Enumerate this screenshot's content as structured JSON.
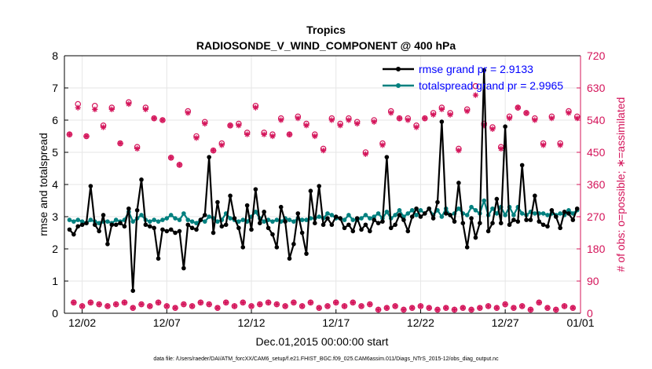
{
  "chart_data": {
    "type": "line",
    "title": "Tropics",
    "subtitle": "RADIOSONDE_V_WIND_COMPONENT @ 400 hPa",
    "xlabel": "Dec.01,2015 00:00:00 start",
    "ylabel_left": "rmse and totalspread",
    "ylabel_right": "# of obs: o=possible; ∗=assimilated",
    "footnote": "data file: /Users/raeder/DAI/ATM_forcXX/CAM6_setup/f.e21.FHIST_BGC.f09_025.CAM6assim.011/Diags_NTrS_2015-12/obs_diag_output.nc",
    "xlim": [
      0.7,
      31.2
    ],
    "ylim_left": [
      0,
      8
    ],
    "ylim_right": [
      0,
      720
    ],
    "x_ticks": [
      1.75,
      6.75,
      11.75,
      16.75,
      21.75,
      26.75,
      31.75
    ],
    "x_tick_labels": [
      "12/02",
      "12/07",
      "12/12",
      "12/17",
      "12/22",
      "12/27",
      "01/01"
    ],
    "y_ticks_left": [
      0,
      1,
      2,
      3,
      4,
      5,
      6,
      7,
      8
    ],
    "y_tick_labels_left": [
      "0",
      "1",
      "2",
      "3",
      "4",
      "5",
      "6",
      "7",
      "8"
    ],
    "y_ticks_right": [
      0,
      90,
      180,
      270,
      360,
      450,
      540,
      630,
      720
    ],
    "y_tick_labels_right": [
      "0",
      "90",
      "180",
      "270",
      "360",
      "450",
      "540",
      "630",
      "720"
    ],
    "legend_position": "top-right",
    "colors": {
      "rmse": "#000000",
      "spread": "#00807f",
      "obs": "#d4145a",
      "legend_text": "#0000ff",
      "right_axis": "#d4145a"
    },
    "series": [
      {
        "name": "rmse grand pr = 2.9133",
        "x": [
          1.0,
          1.25,
          1.5,
          1.75,
          2.0,
          2.25,
          2.5,
          2.75,
          3.0,
          3.25,
          3.5,
          3.75,
          4.0,
          4.25,
          4.5,
          4.75,
          5.0,
          5.25,
          5.5,
          5.75,
          6.0,
          6.25,
          6.5,
          6.75,
          7.0,
          7.25,
          7.5,
          7.75,
          8.0,
          8.25,
          8.5,
          8.75,
          9.0,
          9.25,
          9.5,
          9.75,
          10.0,
          10.25,
          10.5,
          10.75,
          11.0,
          11.25,
          11.5,
          11.75,
          12.0,
          12.25,
          12.5,
          12.75,
          13.0,
          13.25,
          13.5,
          13.75,
          14.0,
          14.25,
          14.5,
          14.75,
          15.0,
          15.25,
          15.5,
          15.75,
          16.0,
          16.25,
          16.5,
          16.75,
          17.0,
          17.25,
          17.5,
          17.75,
          18.0,
          18.25,
          18.5,
          18.75,
          19.0,
          19.25,
          19.5,
          19.75,
          20.0,
          20.25,
          20.5,
          20.75,
          21.0,
          21.25,
          21.5,
          21.75,
          22.0,
          22.25,
          22.5,
          22.75,
          23.0,
          23.25,
          23.5,
          23.75,
          24.0,
          24.25,
          24.5,
          24.75,
          25.0,
          25.25,
          25.5,
          25.75,
          26.0,
          26.25,
          26.5,
          26.75,
          27.0,
          27.25,
          27.5,
          27.75,
          28.0,
          28.25,
          28.5,
          28.75,
          29.0,
          29.25,
          29.5,
          29.75,
          30.0,
          30.25,
          30.5,
          30.75,
          31.0
        ],
        "values": [
          2.6,
          2.45,
          2.7,
          2.75,
          2.8,
          3.95,
          2.75,
          2.55,
          3.05,
          2.15,
          2.75,
          2.75,
          2.8,
          2.7,
          3.25,
          0.7,
          3.2,
          4.15,
          2.75,
          2.7,
          2.65,
          1.7,
          2.6,
          2.55,
          2.6,
          2.5,
          2.55,
          1.4,
          2.75,
          2.65,
          2.6,
          2.9,
          3.05,
          4.85,
          2.5,
          3.45,
          2.7,
          2.75,
          3.65,
          2.95,
          2.65,
          2.05,
          3.35,
          2.6,
          3.85,
          2.8,
          3.15,
          2.65,
          2.45,
          2.05,
          3.3,
          2.85,
          1.7,
          2.15,
          3.1,
          2.5,
          1.85,
          3.8,
          2.8,
          3.95,
          2.75,
          2.95,
          2.75,
          3.0,
          2.95,
          2.65,
          2.75,
          2.55,
          2.95,
          2.6,
          2.75,
          2.55,
          2.9,
          2.8,
          2.85,
          4.85,
          2.65,
          2.75,
          3.05,
          2.9,
          2.55,
          3.0,
          3.25,
          3.0,
          3.1,
          3.25,
          2.95,
          3.45,
          5.95,
          3.1,
          3.05,
          2.85,
          4.05,
          2.8,
          2.05,
          2.95,
          2.35,
          2.8,
          7.55,
          2.55,
          2.8,
          3.55,
          2.8,
          5.8,
          2.75,
          2.9,
          2.85,
          4.6,
          2.9,
          2.9,
          3.65,
          2.85,
          2.75,
          2.7,
          3.2,
          3.0,
          2.65,
          3.15,
          3.1,
          2.9,
          3.25
        ]
      },
      {
        "name": "totalspread grand pr = 2.9965",
        "x": [
          1.0,
          1.25,
          1.5,
          1.75,
          2.0,
          2.25,
          2.5,
          2.75,
          3.0,
          3.25,
          3.5,
          3.75,
          4.0,
          4.25,
          4.5,
          4.75,
          5.0,
          5.25,
          5.5,
          5.75,
          6.0,
          6.25,
          6.5,
          6.75,
          7.0,
          7.25,
          7.5,
          7.75,
          8.0,
          8.25,
          8.5,
          8.75,
          9.0,
          9.25,
          9.5,
          9.75,
          10.0,
          10.25,
          10.5,
          10.75,
          11.0,
          11.25,
          11.5,
          11.75,
          12.0,
          12.25,
          12.5,
          12.75,
          13.0,
          13.25,
          13.5,
          13.75,
          14.0,
          14.25,
          14.5,
          14.75,
          15.0,
          15.25,
          15.5,
          15.75,
          16.0,
          16.25,
          16.5,
          16.75,
          17.0,
          17.25,
          17.5,
          17.75,
          18.0,
          18.25,
          18.5,
          18.75,
          19.0,
          19.25,
          19.5,
          19.75,
          20.0,
          20.25,
          20.5,
          20.75,
          21.0,
          21.25,
          21.5,
          21.75,
          22.0,
          22.25,
          22.5,
          22.75,
          23.0,
          23.25,
          23.5,
          23.75,
          24.0,
          24.25,
          24.5,
          24.75,
          25.0,
          25.25,
          25.5,
          25.75,
          26.0,
          26.25,
          26.5,
          26.75,
          27.0,
          27.25,
          27.5,
          27.75,
          28.0,
          28.25,
          28.5,
          28.75,
          29.0,
          29.25,
          29.5,
          29.75,
          30.0,
          30.25,
          30.5,
          30.75,
          31.0
        ],
        "values": [
          2.9,
          2.85,
          2.9,
          2.85,
          2.8,
          2.9,
          2.85,
          2.8,
          2.85,
          2.85,
          2.8,
          2.9,
          2.85,
          2.9,
          3.15,
          2.85,
          2.95,
          3.05,
          2.9,
          2.85,
          2.9,
          2.85,
          2.9,
          2.95,
          3.05,
          2.95,
          2.9,
          3.1,
          2.9,
          2.85,
          2.8,
          2.9,
          2.85,
          3.0,
          2.95,
          2.85,
          2.9,
          3.1,
          2.95,
          2.9,
          2.85,
          2.9,
          2.85,
          3.0,
          3.15,
          2.95,
          2.85,
          2.9,
          2.85,
          2.9,
          2.85,
          2.95,
          2.9,
          2.85,
          2.95,
          2.9,
          2.9,
          2.95,
          2.95,
          3.0,
          2.95,
          3.1,
          3.05,
          2.95,
          2.95,
          2.9,
          3.05,
          2.9,
          2.9,
          2.95,
          3.05,
          2.95,
          3.0,
          3.1,
          2.95,
          3.15,
          2.95,
          3.05,
          3.2,
          3.0,
          3.1,
          3.2,
          3.05,
          3.2,
          3.1,
          3.25,
          3.05,
          3.2,
          3.0,
          3.25,
          3.05,
          3.1,
          3.25,
          3.1,
          3.05,
          3.3,
          3.2,
          3.1,
          3.5,
          3.05,
          3.25,
          3.1,
          3.3,
          3.05,
          3.3,
          3.05,
          3.3,
          3.1,
          3.05,
          3.15,
          3.1,
          3.1,
          3.1,
          3.05,
          3.1,
          3.05,
          3.1,
          3.05,
          3.2,
          3.1,
          3.2
        ]
      },
      {
        "name": "obs possible",
        "marker": "o",
        "axis": "right",
        "x": [
          1.0,
          1.25,
          1.5,
          1.75,
          2.0,
          2.25,
          2.5,
          2.75,
          3.0,
          3.25,
          3.5,
          3.75,
          4.0,
          4.25,
          4.5,
          4.75,
          5.0,
          5.25,
          5.5,
          5.75,
          6.0,
          6.25,
          6.5,
          6.75,
          7.0,
          7.25,
          7.5,
          7.75,
          8.0,
          8.25,
          8.5,
          8.75,
          9.0,
          9.25,
          9.5,
          9.75,
          10.0,
          10.25,
          10.5,
          10.75,
          11.0,
          11.25,
          11.5,
          11.75,
          12.0,
          12.25,
          12.5,
          12.75,
          13.0,
          13.25,
          13.5,
          13.75,
          14.0,
          14.25,
          14.5,
          14.75,
          15.0,
          15.25,
          15.5,
          15.75,
          16.0,
          16.25,
          16.5,
          16.75,
          17.0,
          17.25,
          17.5,
          17.75,
          18.0,
          18.25,
          18.5,
          18.75,
          19.0,
          19.25,
          19.5,
          19.75,
          20.0,
          20.25,
          20.5,
          20.75,
          21.0,
          21.25,
          21.5,
          21.75,
          22.0,
          22.25,
          22.5,
          22.75,
          23.0,
          23.25,
          23.5,
          23.75,
          24.0,
          24.25,
          24.5,
          24.75,
          25.0,
          25.25,
          25.5,
          25.75,
          26.0,
          26.25,
          26.5,
          26.75,
          27.0,
          27.25,
          27.5,
          27.75,
          28.0,
          28.25,
          28.5,
          28.75,
          29.0,
          29.25,
          29.5,
          29.75,
          30.0,
          30.25,
          30.5,
          30.75,
          31.0
        ],
        "values": [
          500,
          30,
          585,
          20,
          495,
          30,
          580,
          25,
          525,
          20,
          575,
          25,
          475,
          30,
          590,
          15,
          465,
          25,
          575,
          20,
          545,
          30,
          540,
          20,
          435,
          15,
          415,
          25,
          565,
          20,
          495,
          30,
          535,
          25,
          455,
          15,
          475,
          30,
          525,
          20,
          530,
          30,
          505,
          20,
          580,
          25,
          505,
          30,
          500,
          25,
          545,
          20,
          500,
          30,
          550,
          20,
          530,
          30,
          500,
          15,
          460,
          20,
          545,
          30,
          530,
          20,
          545,
          30,
          535,
          20,
          450,
          25,
          540,
          10,
          475,
          15,
          565,
          20,
          545,
          10,
          545,
          15,
          525,
          20,
          545,
          15,
          560,
          10,
          575,
          15,
          560,
          10,
          460,
          15,
          570,
          10,
          635,
          15,
          530,
          20,
          520,
          15,
          465,
          25,
          550,
          15,
          575,
          20,
          560,
          10,
          545,
          30,
          475,
          15,
          550,
          10,
          475,
          20,
          565,
          15,
          550
        ]
      },
      {
        "name": "obs assimilated",
        "marker": "*",
        "axis": "right",
        "x": [
          1.0,
          1.25,
          1.5,
          1.75,
          2.0,
          2.25,
          2.5,
          2.75,
          3.0,
          3.25,
          3.5,
          3.75,
          4.0,
          4.25,
          4.5,
          4.75,
          5.0,
          5.25,
          5.5,
          5.75,
          6.0,
          6.25,
          6.5,
          6.75,
          7.0,
          7.25,
          7.5,
          7.75,
          8.0,
          8.25,
          8.5,
          8.75,
          9.0,
          9.25,
          9.5,
          9.75,
          10.0,
          10.25,
          10.5,
          10.75,
          11.0,
          11.25,
          11.5,
          11.75,
          12.0,
          12.25,
          12.5,
          12.75,
          13.0,
          13.25,
          13.5,
          13.75,
          14.0,
          14.25,
          14.5,
          14.75,
          15.0,
          15.25,
          15.5,
          15.75,
          16.0,
          16.25,
          16.5,
          16.75,
          17.0,
          17.25,
          17.5,
          17.75,
          18.0,
          18.25,
          18.5,
          18.75,
          19.0,
          19.25,
          19.5,
          19.75,
          20.0,
          20.25,
          20.5,
          20.75,
          21.0,
          21.25,
          21.5,
          21.75,
          22.0,
          22.25,
          22.5,
          22.75,
          23.0,
          23.25,
          23.5,
          23.75,
          24.0,
          24.25,
          24.5,
          24.75,
          25.0,
          25.25,
          25.5,
          25.75,
          26.0,
          26.25,
          26.5,
          26.75,
          27.0,
          27.25,
          27.5,
          27.75,
          28.0,
          28.25,
          28.5,
          28.75,
          29.0,
          29.25,
          29.5,
          29.75,
          30.0,
          30.25,
          30.5,
          30.75,
          31.0
        ],
        "values": [
          500,
          30,
          575,
          20,
          495,
          30,
          570,
          25,
          520,
          20,
          570,
          25,
          475,
          30,
          585,
          15,
          460,
          25,
          570,
          20,
          545,
          30,
          540,
          20,
          435,
          15,
          415,
          25,
          560,
          20,
          490,
          30,
          530,
          25,
          455,
          15,
          470,
          30,
          525,
          20,
          525,
          30,
          500,
          20,
          575,
          25,
          500,
          30,
          495,
          25,
          540,
          20,
          500,
          30,
          545,
          20,
          525,
          30,
          495,
          15,
          455,
          20,
          540,
          30,
          525,
          20,
          540,
          30,
          530,
          20,
          445,
          25,
          535,
          10,
          470,
          15,
          560,
          20,
          545,
          10,
          540,
          15,
          520,
          20,
          545,
          15,
          555,
          10,
          570,
          15,
          555,
          10,
          455,
          15,
          565,
          10,
          610,
          15,
          525,
          20,
          515,
          15,
          460,
          25,
          545,
          15,
          575,
          20,
          560,
          10,
          540,
          30,
          470,
          15,
          545,
          10,
          470,
          20,
          560,
          15,
          545
        ]
      }
    ]
  }
}
